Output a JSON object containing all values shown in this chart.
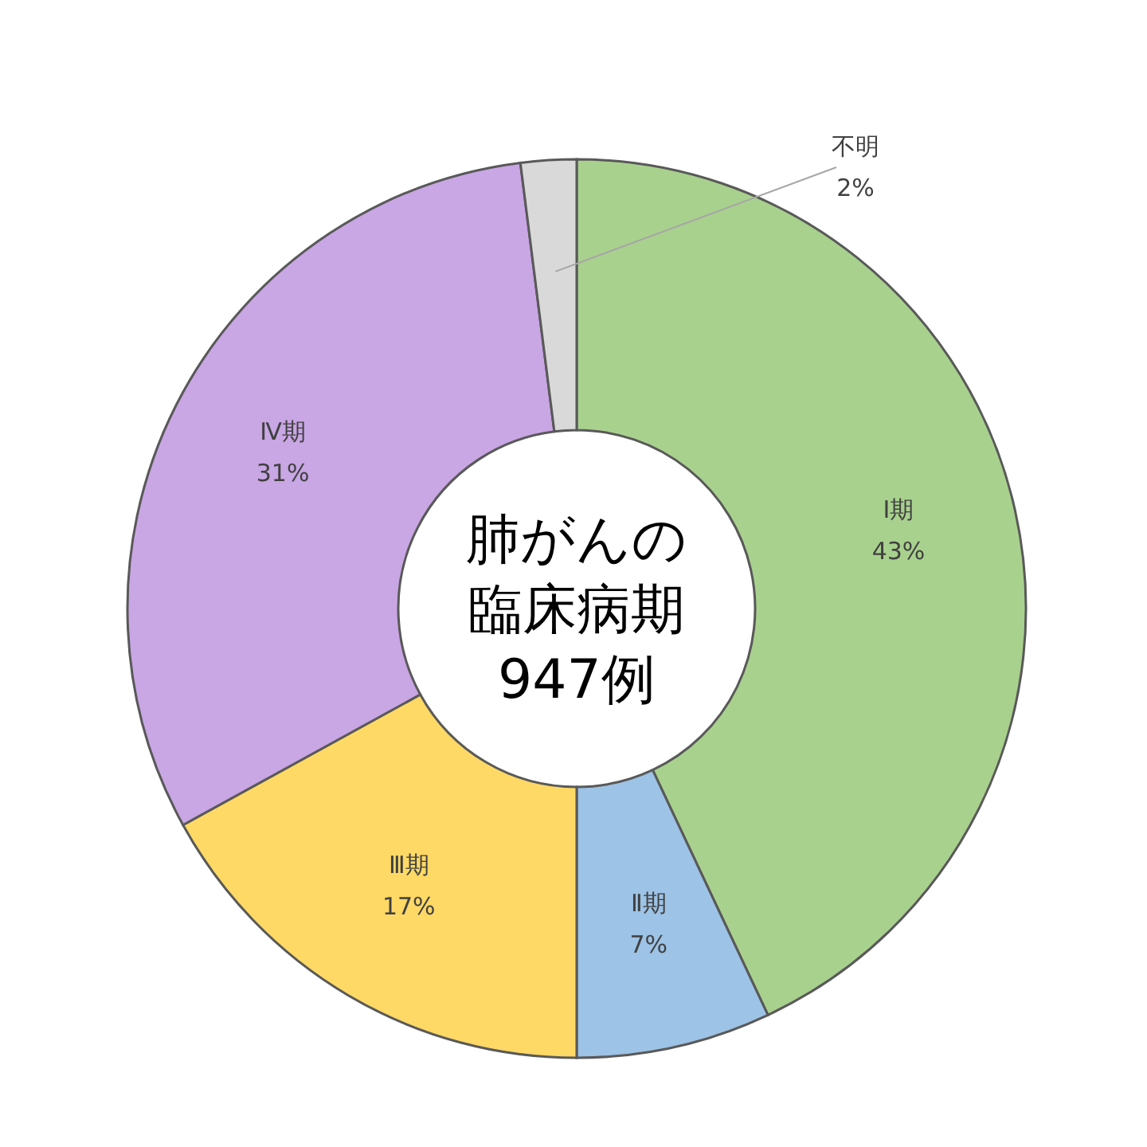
{
  "chart_data": {
    "type": "donut",
    "title": "肺がんの臨床病期947例",
    "categories": [
      "Ⅰ期",
      "Ⅱ期",
      "Ⅲ期",
      "Ⅳ期",
      "不明"
    ],
    "values": [
      43,
      7,
      17,
      31,
      2
    ],
    "colors": [
      "#a9d18e",
      "#9dc3e6",
      "#ffd966",
      "#c9a6e4",
      "#d9d9d9"
    ],
    "value_labels": [
      "43%",
      "7%",
      "17%",
      "31%",
      "2%"
    ]
  }
}
